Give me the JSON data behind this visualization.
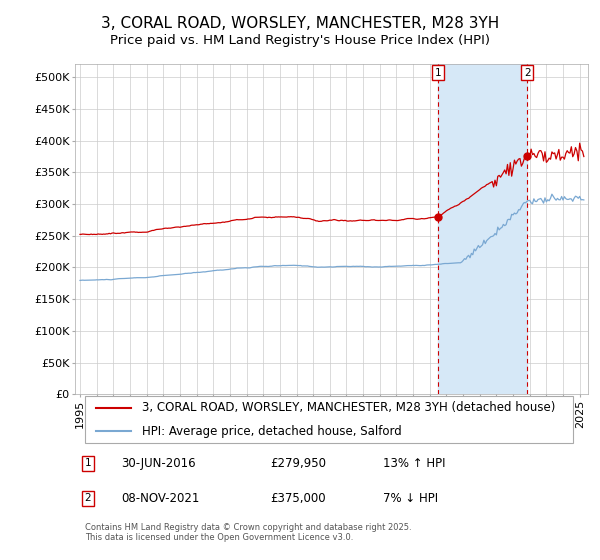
{
  "title": "3, CORAL ROAD, WORSLEY, MANCHESTER, M28 3YH",
  "subtitle": "Price paid vs. HM Land Registry's House Price Index (HPI)",
  "ylabel_ticks": [
    "£0",
    "£50K",
    "£100K",
    "£150K",
    "£200K",
    "£250K",
    "£300K",
    "£350K",
    "£400K",
    "£450K",
    "£500K"
  ],
  "ytick_values": [
    0,
    50000,
    100000,
    150000,
    200000,
    250000,
    300000,
    350000,
    400000,
    450000,
    500000
  ],
  "ylim": [
    0,
    520000
  ],
  "xlim_start": 1994.7,
  "xlim_end": 2025.5,
  "line1_color": "#cc0000",
  "line2_color": "#7aa8d2",
  "fill_color": "#d6e8f7",
  "line1_label": "3, CORAL ROAD, WORSLEY, MANCHESTER, M28 3YH (detached house)",
  "line2_label": "HPI: Average price, detached house, Salford",
  "marker1_date": 2016.495,
  "marker1_price": 279950,
  "marker2_date": 2021.855,
  "marker2_price": 375000,
  "background_color": "#ffffff",
  "grid_color": "#cccccc",
  "title_fontsize": 11,
  "subtitle_fontsize": 9.5,
  "tick_fontsize": 8,
  "legend_fontsize": 8.5,
  "footnote": "Contains HM Land Registry data © Crown copyright and database right 2025.\nThis data is licensed under the Open Government Licence v3.0."
}
